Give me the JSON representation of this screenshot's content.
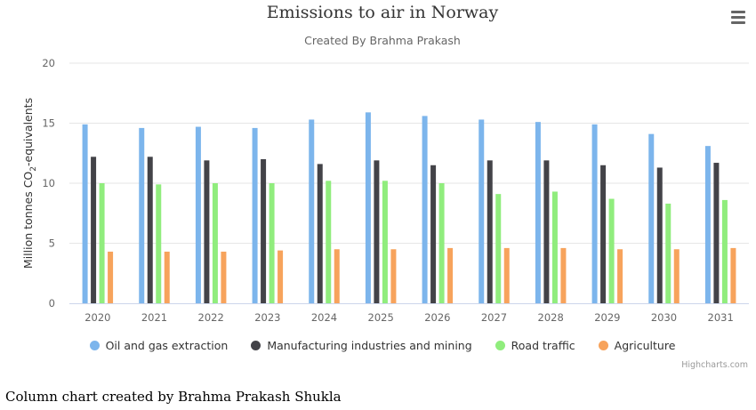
{
  "chart_data": {
    "type": "bar",
    "title": "Emissions to air in Norway",
    "subtitle": "Created By Brahma Prakash",
    "ylabel": "Million tonnes CO",
    "ylabel_sub": "2",
    "ylabel_suffix": "-equivalents",
    "xlabel": "",
    "ylim": [
      0,
      20
    ],
    "yticks": [
      0,
      5,
      10,
      15,
      20
    ],
    "grid": true,
    "legend_position": "bottom",
    "categories": [
      "2020",
      "2021",
      "2022",
      "2023",
      "2024",
      "2025",
      "2026",
      "2027",
      "2028",
      "2029",
      "2030",
      "2031"
    ],
    "series": [
      {
        "name": "Oil and gas extraction",
        "color": "#7cb5ec",
        "values": [
          14.9,
          14.6,
          14.7,
          14.6,
          15.3,
          15.9,
          15.6,
          15.3,
          15.1,
          14.9,
          14.1,
          13.1
        ]
      },
      {
        "name": "Manufacturing industries and mining",
        "color": "#434348",
        "values": [
          12.2,
          12.2,
          11.9,
          12.0,
          11.6,
          11.9,
          11.5,
          11.9,
          11.9,
          11.5,
          11.3,
          11.7
        ]
      },
      {
        "name": "Road traffic",
        "color": "#90ed7d",
        "values": [
          10.0,
          9.9,
          10.0,
          10.0,
          10.2,
          10.2,
          10.0,
          9.1,
          9.3,
          8.7,
          8.3,
          8.6
        ]
      },
      {
        "name": "Agriculture",
        "color": "#f7a35c",
        "values": [
          4.3,
          4.3,
          4.3,
          4.4,
          4.5,
          4.5,
          4.6,
          4.6,
          4.6,
          4.5,
          4.5,
          4.6
        ]
      }
    ]
  },
  "menu": {
    "icon": "hamburger-menu-icon"
  },
  "credits": "Highcharts.com",
  "caption": "Column chart created by Brahma Prakash Shukla"
}
